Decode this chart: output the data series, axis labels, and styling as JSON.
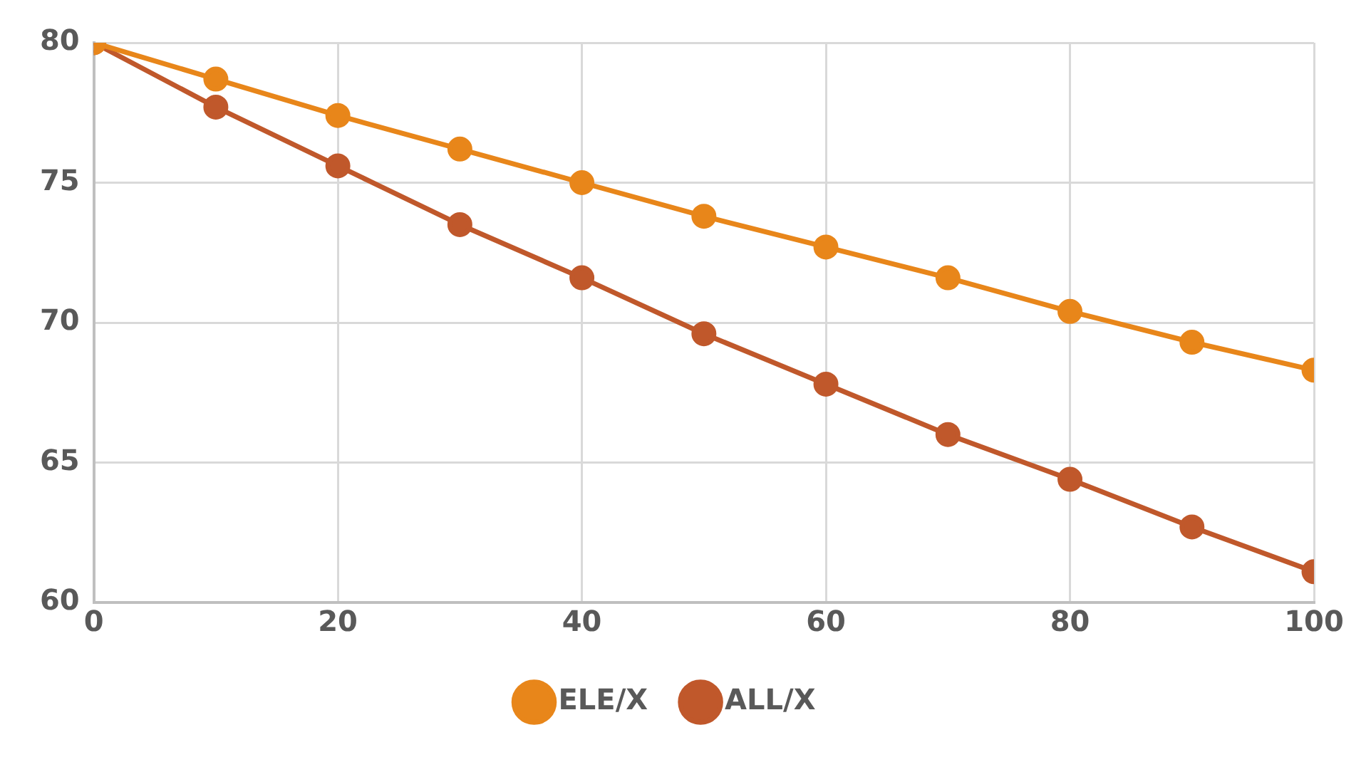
{
  "chart_data": {
    "type": "line",
    "x": [
      0,
      10,
      20,
      30,
      40,
      50,
      60,
      70,
      80,
      90,
      100
    ],
    "series": [
      {
        "name": "ELE/X",
        "color": "#e8861a",
        "values": [
          80,
          78.7,
          77.4,
          76.2,
          75.0,
          73.8,
          72.7,
          71.6,
          70.4,
          69.3,
          68.3
        ]
      },
      {
        "name": "ALL/X",
        "color": "#c0582b",
        "values": [
          80,
          77.7,
          75.6,
          73.5,
          71.6,
          69.6,
          67.8,
          66.0,
          64.4,
          62.7,
          61.1
        ]
      }
    ],
    "xlim": [
      0,
      100
    ],
    "xticks": [
      0,
      20,
      40,
      60,
      80,
      100
    ],
    "ylim": [
      60,
      80
    ],
    "yticks": [
      60,
      65,
      70,
      75,
      80
    ],
    "grid": true,
    "legend": "bottom",
    "marker": "circle",
    "line_style": "solid"
  }
}
